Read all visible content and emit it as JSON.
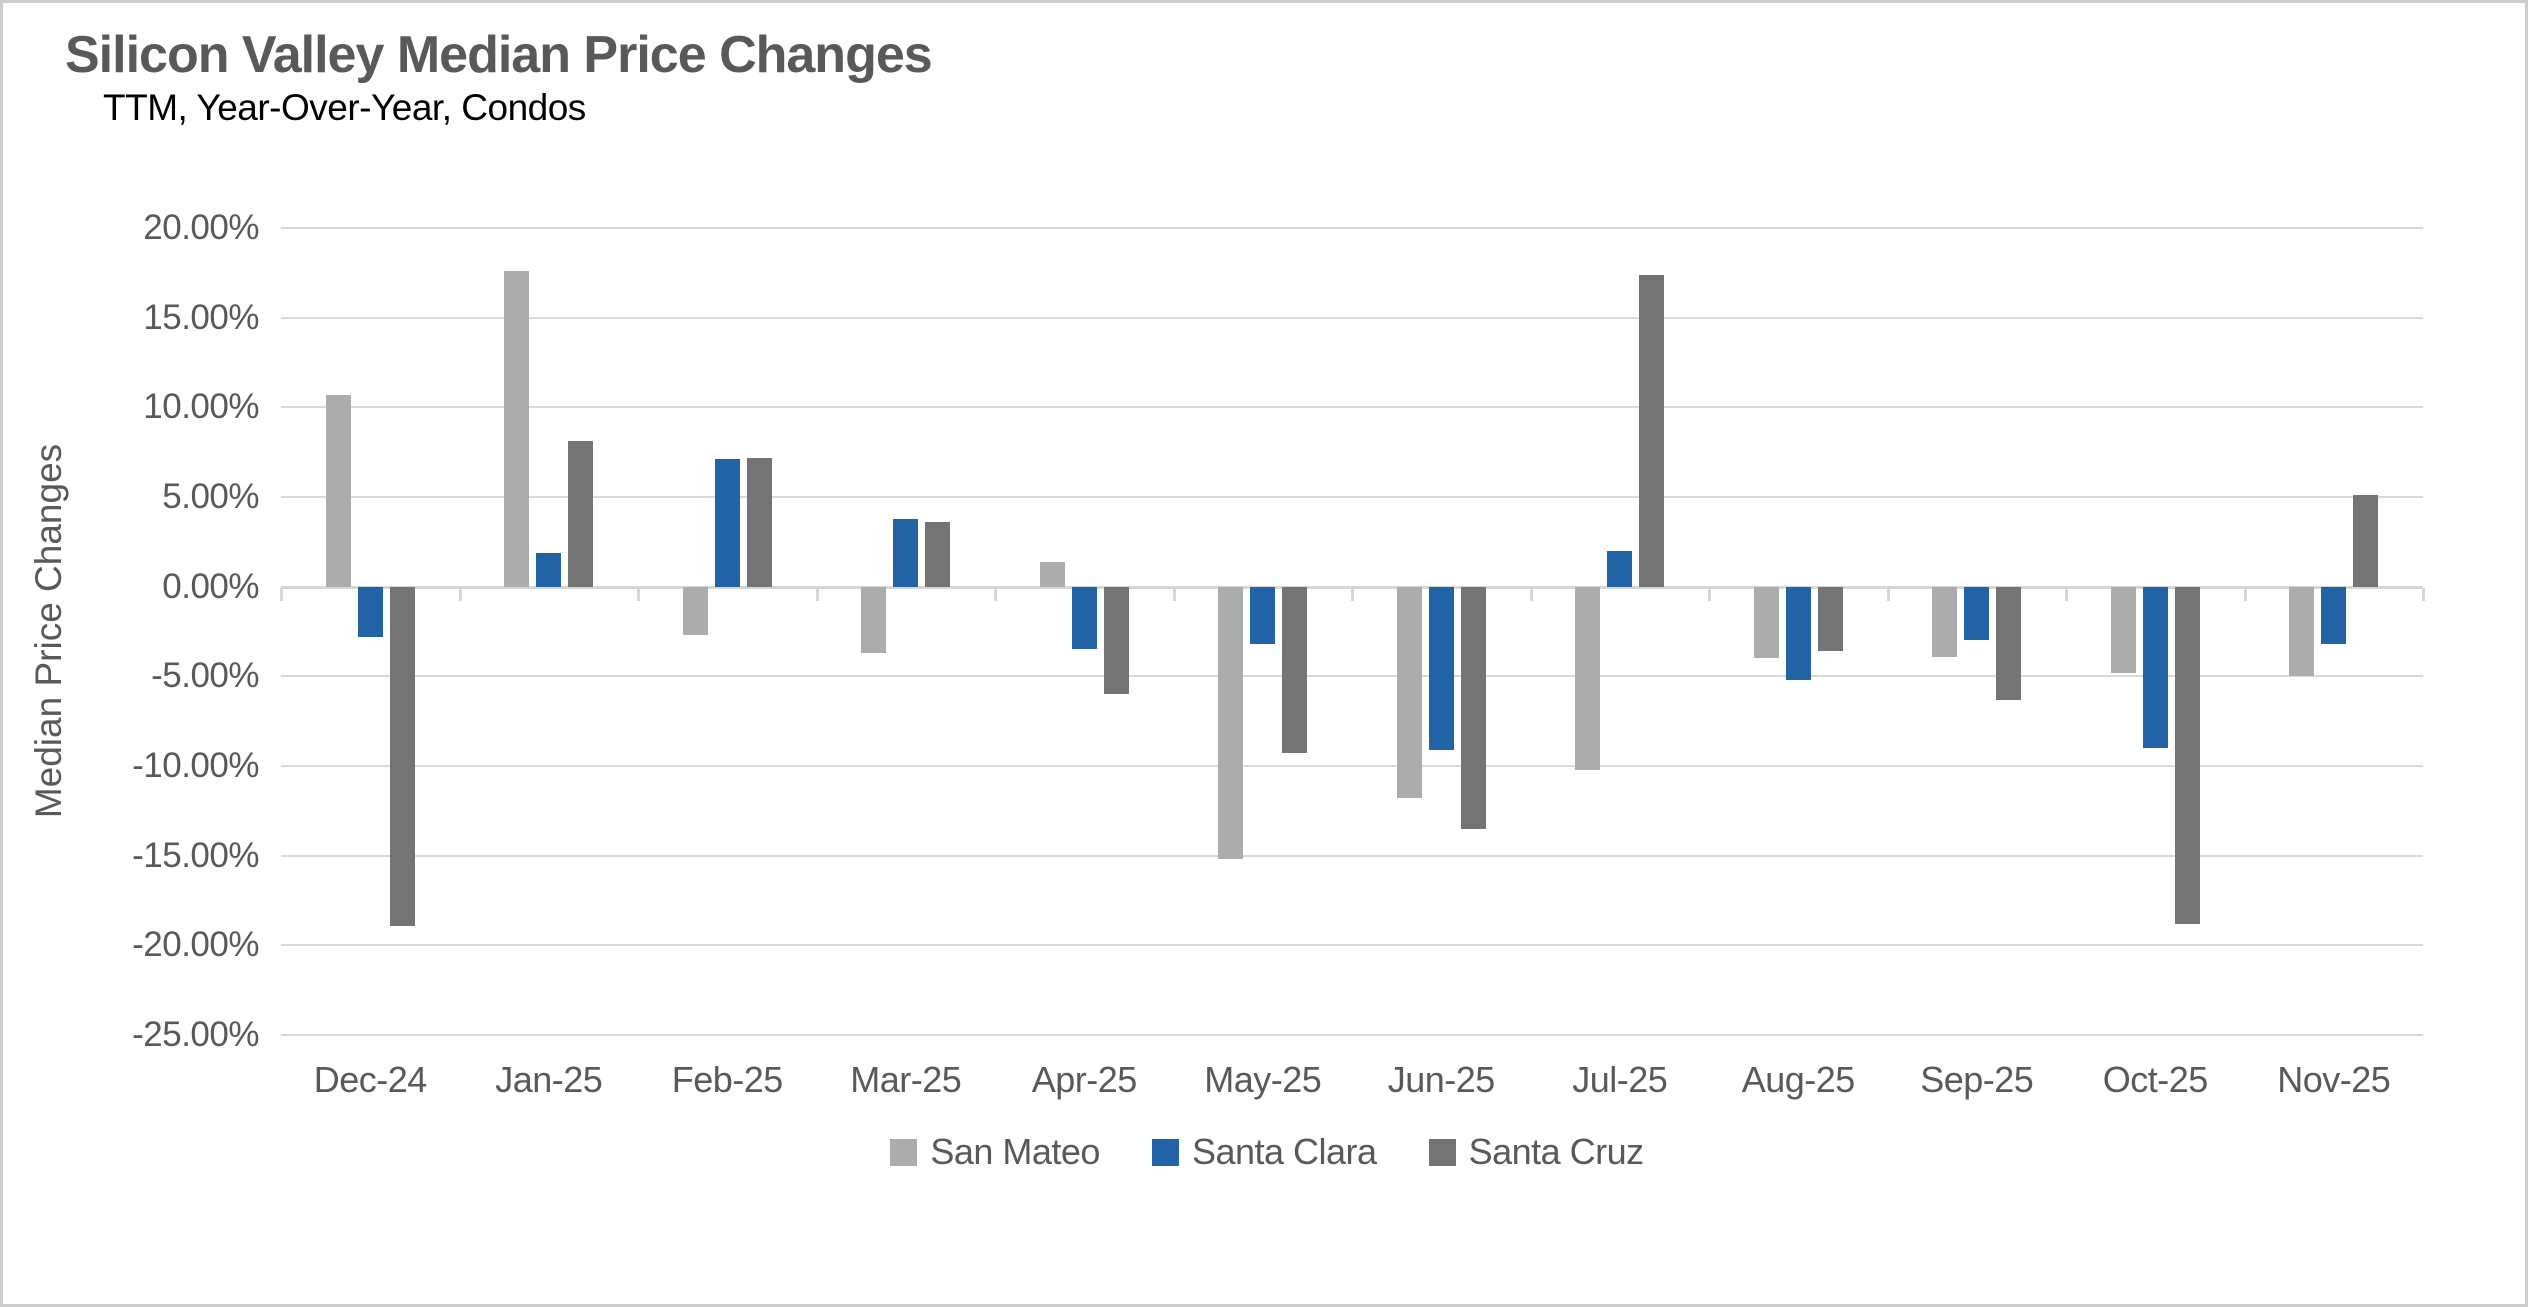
{
  "title": "Silicon Valley Median Price Changes",
  "subtitle": "TTM, Year-Over-Year, Condos",
  "chart_data": {
    "type": "bar",
    "title": "Silicon Valley Median Price Changes",
    "subtitle": "TTM, Year-Over-Year, Condos",
    "xlabel": "",
    "ylabel": "Median Price Changes",
    "ylim": [
      -25,
      20
    ],
    "ytick_step": 5,
    "ytick_labels": [
      "20.00%",
      "15.00%",
      "10.00%",
      "5.00%",
      "0.00%",
      "-5.00%",
      "-10.00%",
      "-15.00%",
      "-20.00%",
      "-25.00%"
    ],
    "grid": true,
    "legend_position": "bottom",
    "categories": [
      "Dec-24",
      "Jan-25",
      "Feb-25",
      "Mar-25",
      "Apr-25",
      "May-25",
      "Jun-25",
      "Jul-25",
      "Aug-25",
      "Sep-25",
      "Oct-25",
      "Nov-25"
    ],
    "series": [
      {
        "name": "San Mateo",
        "color": "#ACACAC",
        "values": [
          10.7,
          17.6,
          -2.7,
          -3.7,
          1.4,
          -15.2,
          -11.8,
          -10.2,
          -4.0,
          -3.9,
          -4.8,
          -5.0
        ]
      },
      {
        "name": "Santa Clara",
        "color": "#2263A5",
        "values": [
          -2.8,
          1.9,
          7.1,
          3.8,
          -3.5,
          -3.2,
          -9.1,
          2.0,
          -5.2,
          -3.0,
          -9.0,
          -3.2
        ]
      },
      {
        "name": "Santa Cruz",
        "color": "#747474",
        "values": [
          -18.9,
          8.1,
          7.2,
          3.6,
          -6.0,
          -9.3,
          -13.5,
          17.4,
          -3.6,
          -6.3,
          -18.8,
          5.1
        ]
      }
    ],
    "colors": {
      "gridline": "#d9d9d9",
      "axis_text": "#595959",
      "title_text": "#595959",
      "subtitle_text": "#000000"
    }
  }
}
